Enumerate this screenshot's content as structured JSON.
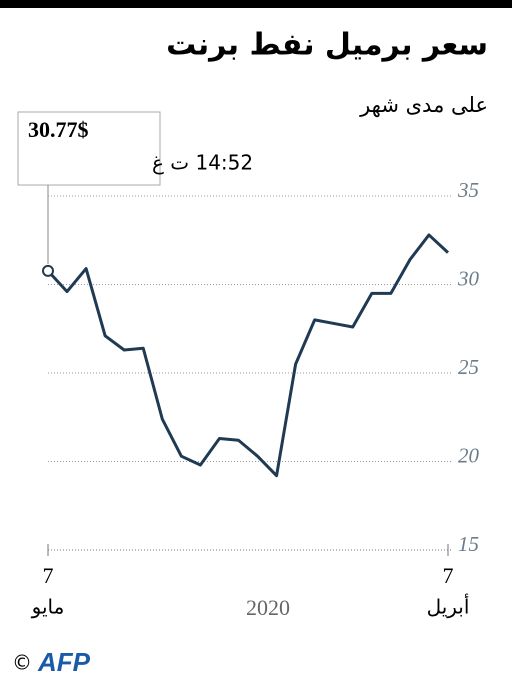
{
  "chart_data": {
    "type": "line",
    "title": "سعر برميل نفط برنت",
    "subtitle": "على مدى شهر",
    "annotation": {
      "value": "30.77$",
      "time": "14:52 ت غ"
    },
    "categories": [
      "7",
      null,
      null,
      null,
      null,
      null,
      null,
      null,
      null,
      null,
      null,
      null,
      null,
      null,
      null,
      null,
      null,
      null,
      null,
      null,
      null,
      "7"
    ],
    "x_months": [
      "مايو",
      "أبريل"
    ],
    "x_year": "2020",
    "values": [
      30.77,
      29.6,
      30.9,
      27.1,
      26.3,
      26.4,
      22.4,
      20.3,
      19.8,
      21.3,
      21.2,
      20.3,
      19.2,
      25.5,
      28.0,
      27.8,
      27.6,
      29.5,
      29.5,
      31.4,
      32.8,
      31.8
    ],
    "color": "#1f3a52",
    "ylim": [
      15,
      35
    ],
    "yticks": [
      15,
      20,
      25,
      30,
      35
    ],
    "grid": true,
    "credit": "AFP"
  }
}
